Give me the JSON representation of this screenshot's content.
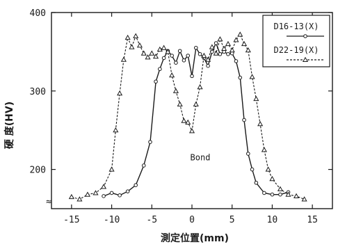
{
  "chart_data": {
    "type": "line",
    "xlabel": "測定位置(mm)",
    "ylabel": "硬 度(HV)",
    "xlim": [
      -17.5,
      17.5
    ],
    "ylim": [
      150,
      400
    ],
    "x_ticks": [
      -15,
      -10,
      -5,
      0,
      5,
      10,
      15
    ],
    "y_ticks": [
      200,
      300,
      400
    ],
    "axis_break": "≈",
    "annotations": [
      {
        "text": "Bond",
        "x": 0,
        "y": 215
      }
    ],
    "legend_position": "top-right",
    "series": [
      {
        "name": "D16-13(X)",
        "style": "solid",
        "marker": "circle",
        "color": "#1a1a1a",
        "x": [
          -11,
          -10,
          -9,
          -8,
          -7,
          -6,
          -5.2,
          -4.5,
          -4,
          -3.5,
          -3,
          -2.5,
          -2,
          -1.5,
          -1,
          -0.5,
          0,
          0.5,
          1,
          1.5,
          2,
          2.5,
          3,
          3.5,
          4,
          4.5,
          5,
          5.5,
          6,
          6.5,
          7,
          7.5,
          8,
          9,
          10,
          11,
          12
        ],
        "y": [
          166,
          170,
          167,
          172,
          180,
          205,
          235,
          312,
          328,
          342,
          351,
          345,
          336,
          351,
          339,
          345,
          319,
          355,
          347,
          342,
          332,
          350,
          361,
          347,
          350,
          347,
          348,
          338,
          317,
          263,
          220,
          200,
          183,
          170,
          168,
          168,
          171
        ]
      },
      {
        "name": "D22-19(X)",
        "style": "dashed",
        "marker": "triangle",
        "color": "#1a1a1a",
        "x": [
          -15,
          -14,
          -13,
          -12,
          -11,
          -10,
          -9.5,
          -9,
          -8.5,
          -8,
          -7.5,
          -7,
          -6.5,
          -6,
          -5.5,
          -5,
          -4.5,
          -4,
          -3.5,
          -3,
          -2.5,
          -2,
          -1.5,
          -1,
          -0.5,
          0,
          0.5,
          1,
          1.5,
          2,
          2.5,
          3,
          3.5,
          4,
          4.5,
          5,
          5.5,
          6,
          6.5,
          7,
          7.5,
          8,
          8.5,
          9,
          9.5,
          10,
          11,
          12,
          13,
          14
        ],
        "y": [
          165,
          162,
          168,
          170,
          178,
          200,
          250,
          297,
          340,
          368,
          356,
          370,
          358,
          348,
          343,
          348,
          344,
          353,
          355,
          350,
          320,
          300,
          283,
          262,
          260,
          249,
          283,
          305,
          345,
          340,
          356,
          348,
          366,
          354,
          360,
          352,
          365,
          372,
          360,
          352,
          318,
          290,
          258,
          225,
          200,
          188,
          175,
          168,
          166,
          162
        ]
      }
    ]
  }
}
